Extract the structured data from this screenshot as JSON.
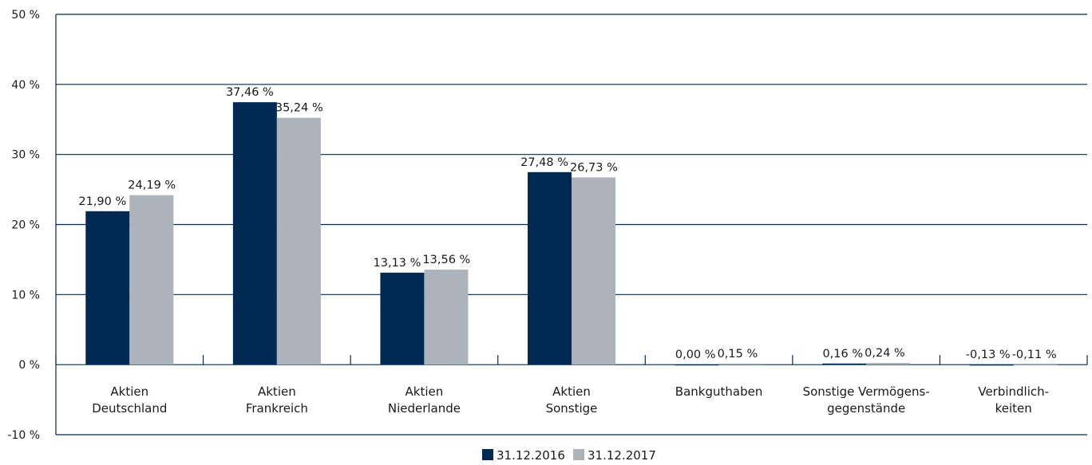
{
  "chart_data": {
    "type": "bar",
    "categories": [
      [
        "Aktien",
        "Deutschland"
      ],
      [
        "Aktien",
        "Frankreich"
      ],
      [
        "Aktien",
        "Niederlande"
      ],
      [
        "Aktien",
        "Sonstige"
      ],
      [
        "Bankguthaben"
      ],
      [
        "Sonstige Vermögens-",
        "gegenstände"
      ],
      [
        "Verbindlich-",
        "keiten"
      ]
    ],
    "series": [
      {
        "name": "31.12.2016",
        "color": "#002a54",
        "values": [
          21.9,
          37.46,
          13.13,
          27.48,
          0.0,
          0.16,
          -0.13
        ],
        "labels": [
          "21,90 %",
          "37,46 %",
          "13,13 %",
          "27,48 %",
          "0,00 %",
          "0,16 %",
          "-0,13 %"
        ]
      },
      {
        "name": "31.12.2017",
        "color": "#adb3ba",
        "values": [
          24.19,
          35.24,
          13.56,
          26.73,
          0.15,
          0.24,
          -0.11
        ],
        "labels": [
          "24,19 %",
          "35,24 %",
          "13,56 %",
          "26,73 %",
          "0,15 %",
          "0,24 %",
          "-0,11 %"
        ]
      }
    ],
    "ylim": [
      -10,
      50
    ],
    "yticks": [
      50,
      40,
      30,
      20,
      10,
      0,
      -10
    ],
    "ytick_labels": [
      "50 %",
      "40 %",
      "30 %",
      "20 %",
      "10 %",
      "0 %",
      "-10 %"
    ],
    "title": "",
    "xlabel": "",
    "ylabel": "",
    "grid": true,
    "legend_position": "bottom-center",
    "gridline_color": "#002a54"
  }
}
